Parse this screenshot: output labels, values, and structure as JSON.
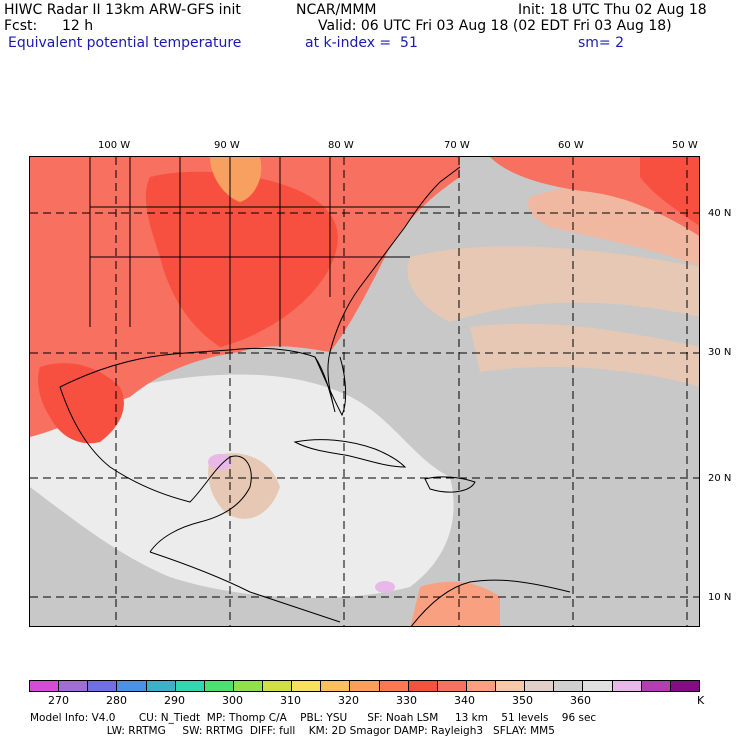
{
  "header": {
    "model_line": "HIWC Radar II 13km ARW-GFS init",
    "org": "NCAR/MMM",
    "init": "Init: 18 UTC Thu 02 Aug 18",
    "fcst_label": "Fcst:",
    "fcst_value": "12 h",
    "valid": "Valid: 06 UTC Fri 03 Aug 18 (02 EDT Fri 03 Aug 18)",
    "field": "Equivalent potential temperature",
    "level": "at k-index =  51",
    "smoothing": "sm= 2"
  },
  "longitude_labels": [
    "100 W",
    "90 W",
    "80 W",
    "70 W",
    "60 W",
    "50 W"
  ],
  "latitude_labels": [
    "40 N",
    "30 N",
    "20 N",
    "10 N"
  ],
  "colorbar": {
    "colors": [
      "#d24fd2",
      "#a070d0",
      "#7070e0",
      "#5090e0",
      "#40b0c8",
      "#30d8b0",
      "#50e070",
      "#90e050",
      "#d0e040",
      "#f8e060",
      "#f8c060",
      "#f8a060",
      "#f87858",
      "#f85040",
      "#f87060",
      "#f8a080",
      "#f8c8a8",
      "#e0d0c8",
      "#d0d0d0",
      "#e0e0e0",
      "#e8b8e8",
      "#b040b0",
      "#801080"
    ],
    "tick_labels": [
      "270",
      "280",
      "290",
      "300",
      "310",
      "320",
      "330",
      "340",
      "350",
      "360"
    ],
    "unit": "K"
  },
  "model_info": {
    "line1": "Model Info: V4.0       CU: N_Tiedt  MP: Thomp C/A    PBL: YSU      SF: Noah LSM     13 km    51 levels    96 sec",
    "line2": "                       LW: RRTMG     SW: RRTMG  DIFF: full    KM: 2D Smagor DAMP: Rayleigh3   SFLAY: MM5"
  }
}
